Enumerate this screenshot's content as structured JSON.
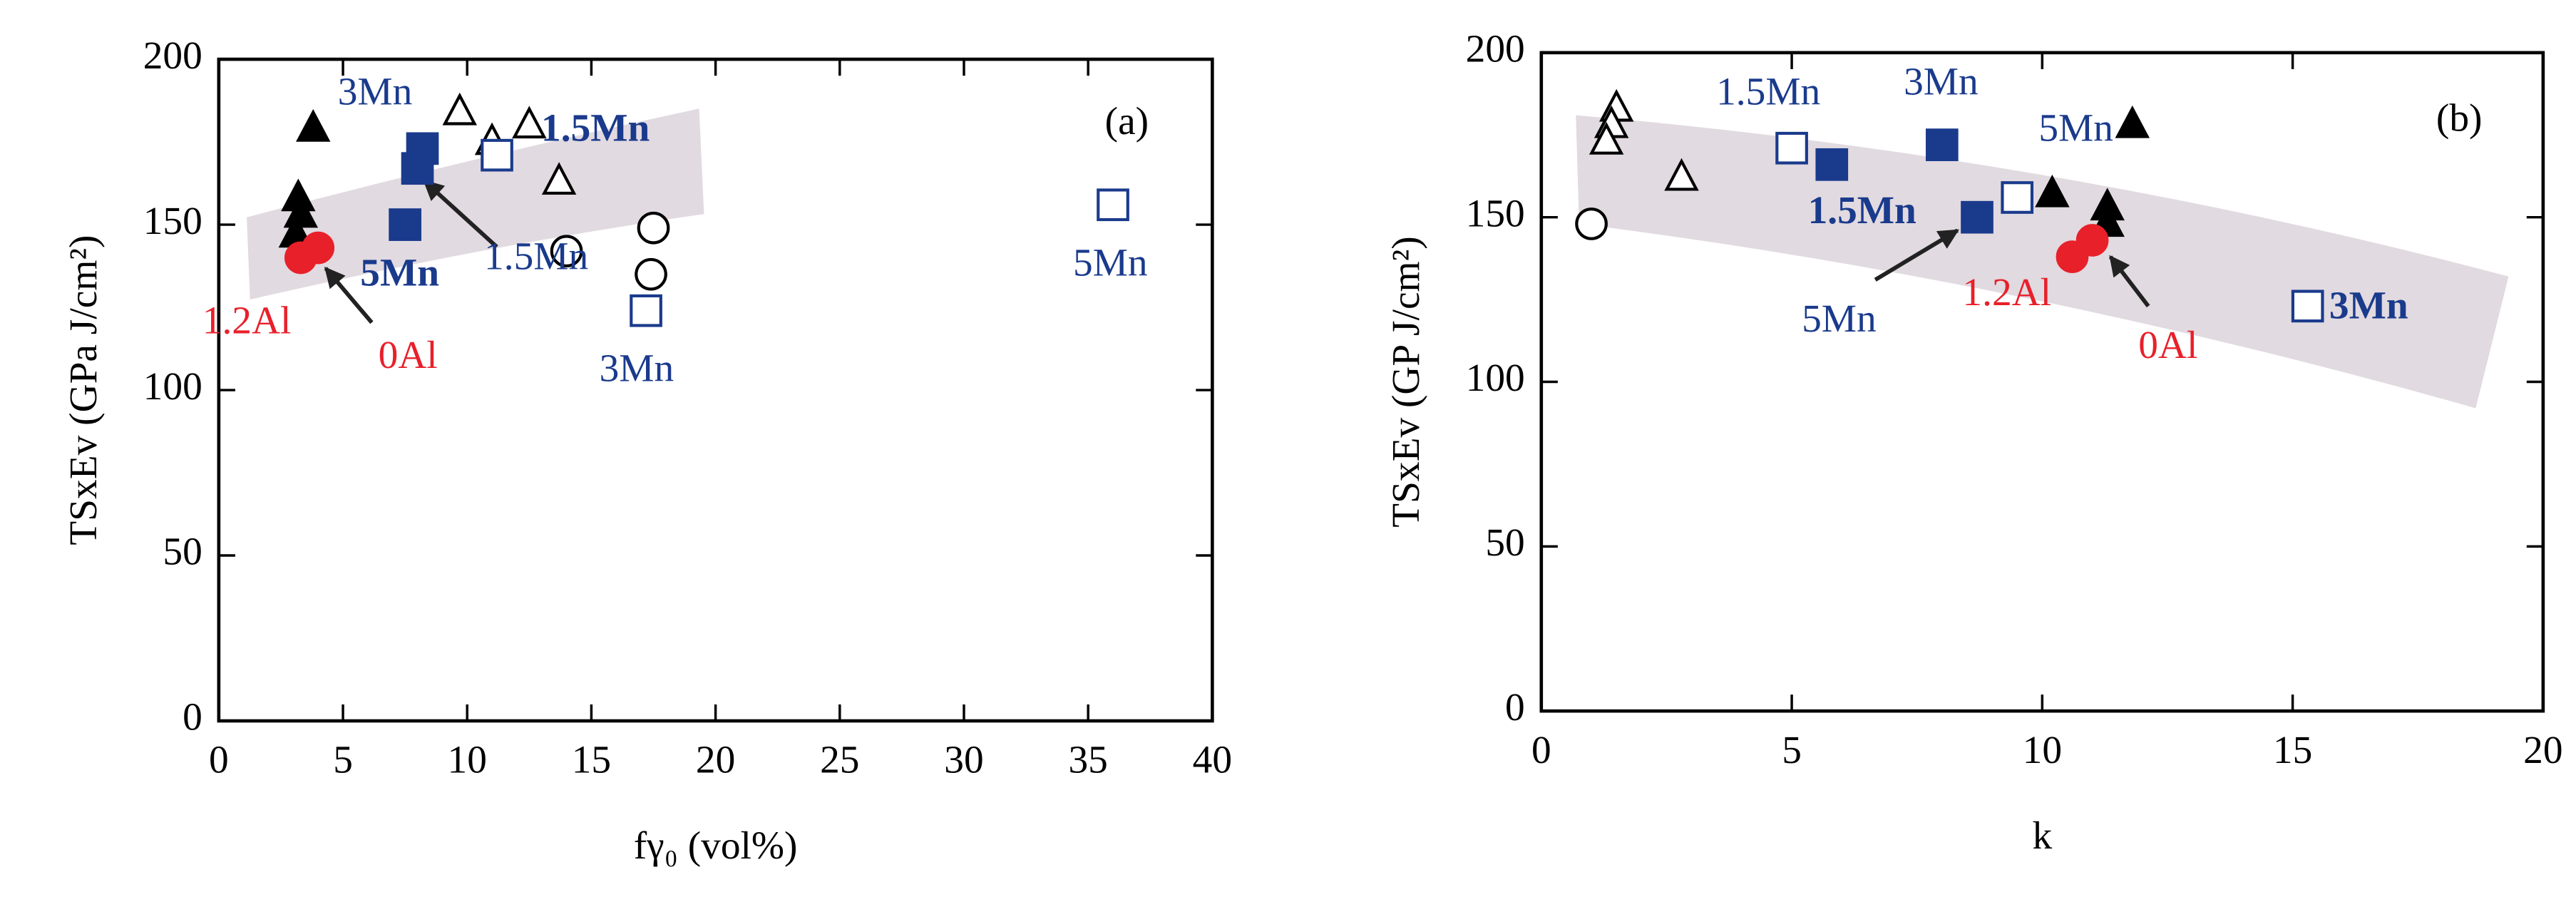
{
  "chart_data": [
    {
      "type": "scatter",
      "xlabel": "fγ₀ (vol%)",
      "ylabel": "TSxEv (GPa J/cm²)",
      "xlim": [
        0,
        40
      ],
      "ylim": [
        0,
        200
      ],
      "xticks": [
        0,
        5,
        10,
        15,
        20,
        25,
        30,
        35,
        40
      ],
      "yticks": [
        0,
        50,
        100,
        150,
        200
      ],
      "series": [
        {
          "marker": "triangle",
          "filled": true,
          "color": "#000000",
          "x": [
            3.8,
            3.2,
            3.3,
            3.1
          ],
          "values": [
            179,
            158,
            153,
            147
          ]
        },
        {
          "marker": "triangle",
          "filled": false,
          "color": "#000000",
          "x": [
            9.7,
            11.0,
            12.5,
            13.7
          ],
          "values": [
            184,
            175,
            180,
            163
          ]
        },
        {
          "marker": "square",
          "filled": true,
          "color": "#1a3a8c",
          "x": [
            7.5,
            8.0,
            8.2
          ],
          "values": [
            150,
            167,
            173
          ]
        },
        {
          "marker": "square",
          "filled": false,
          "color": "#1a3a8c",
          "x": [
            11.2,
            17.2,
            36.0
          ],
          "values": [
            171,
            124,
            156
          ]
        },
        {
          "marker": "circle",
          "filled": false,
          "color": "#000000",
          "x": [
            14.0,
            17.5,
            17.4
          ],
          "values": [
            142,
            149,
            135
          ]
        },
        {
          "marker": "circle",
          "filled": true,
          "color": "#e8202a",
          "x": [
            3.3,
            4.0
          ],
          "values": [
            140,
            143
          ]
        }
      ],
      "annotations": [
        {
          "text": "3Mn",
          "color": "#1a3a8c"
        },
        {
          "text": "1.5Mn",
          "color": "#1a3a8c",
          "bold": true
        },
        {
          "text": "5Mn",
          "color": "#1a3a8c",
          "bold": true
        },
        {
          "text": "1.5Mn",
          "color": "#1a3a8c"
        },
        {
          "text": "3Mn",
          "color": "#1a3a8c"
        },
        {
          "text": "5Mn",
          "color": "#1a3a8c"
        },
        {
          "text": "1.2Al",
          "color": "#e8202a"
        },
        {
          "text": "0Al",
          "color": "#e8202a"
        },
        {
          "text": "(a)",
          "color": "#000000"
        }
      ]
    },
    {
      "type": "scatter",
      "xlabel": "k",
      "ylabel": "TSxEv (GP J/cm²)",
      "xlim": [
        0,
        20
      ],
      "ylim": [
        0,
        200
      ],
      "xticks": [
        0,
        5,
        10,
        15,
        20
      ],
      "yticks": [
        0,
        50,
        100,
        150,
        200
      ],
      "series": [
        {
          "marker": "triangle",
          "filled": false,
          "color": "#000000",
          "x": [
            1.5,
            1.4,
            1.3,
            2.8
          ],
          "values": [
            183,
            178,
            173,
            162
          ]
        },
        {
          "marker": "circle",
          "filled": false,
          "color": "#000000",
          "x": [
            1.0
          ],
          "values": [
            148
          ]
        },
        {
          "marker": "square",
          "filled": false,
          "color": "#1a3a8c",
          "x": [
            5.0,
            9.5,
            15.3
          ],
          "values": [
            171,
            156,
            123
          ]
        },
        {
          "marker": "square",
          "filled": true,
          "color": "#1a3a8c",
          "x": [
            5.8,
            8.0,
            8.7
          ],
          "values": [
            166,
            172,
            150
          ]
        },
        {
          "marker": "triangle",
          "filled": true,
          "color": "#000000",
          "x": [
            10.2,
            11.3,
            11.3,
            11.8
          ],
          "values": [
            157,
            153,
            148,
            178
          ]
        },
        {
          "marker": "circle",
          "filled": true,
          "color": "#e8202a",
          "x": [
            10.6,
            11.0
          ],
          "values": [
            138,
            143
          ]
        }
      ],
      "annotations": [
        {
          "text": "1.5Mn",
          "color": "#1a3a8c"
        },
        {
          "text": "3Mn",
          "color": "#1a3a8c"
        },
        {
          "text": "5Mn",
          "color": "#1a3a8c"
        },
        {
          "text": "1.5Mn",
          "color": "#1a3a8c",
          "bold": true
        },
        {
          "text": "5Mn",
          "color": "#1a3a8c"
        },
        {
          "text": "1.2Al",
          "color": "#e8202a"
        },
        {
          "text": "0Al",
          "color": "#e8202a"
        },
        {
          "text": "3Mn",
          "color": "#1a3a8c",
          "bold": true
        },
        {
          "text": "(b)",
          "color": "#000000"
        }
      ]
    }
  ]
}
